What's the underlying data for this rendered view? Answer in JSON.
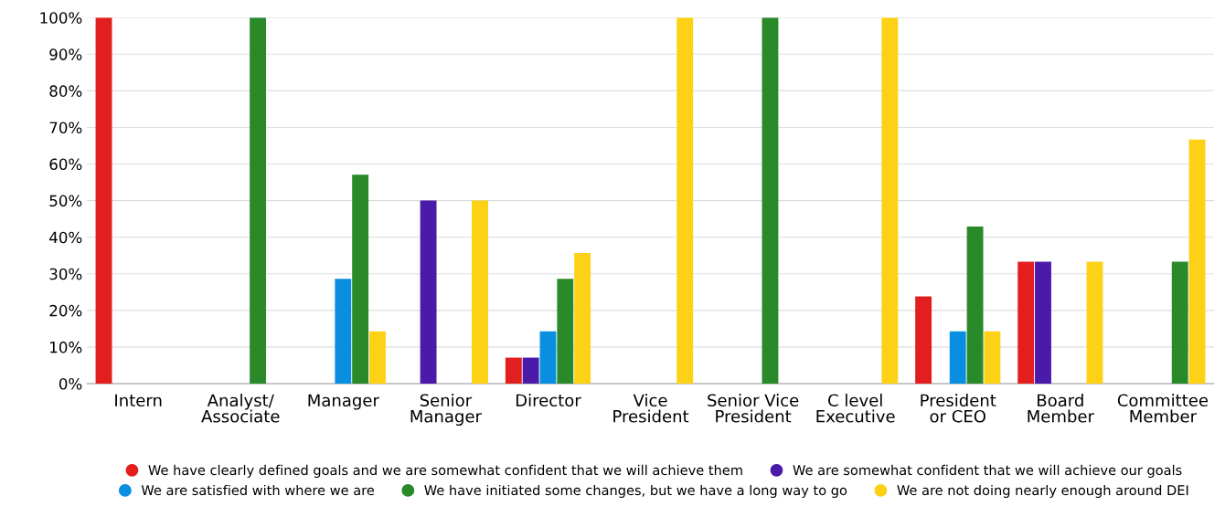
{
  "chart_data": {
    "type": "bar",
    "categories": [
      "Intern",
      "Analyst/\nAssociate",
      "Manager",
      "Senior\nManager",
      "Director",
      "Vice\nPresident",
      "Senior Vice\nPresident",
      "C level\nExecutive",
      "President\nor CEO",
      "Board\nMember",
      "Committee\nMember"
    ],
    "series": [
      {
        "name": "We have clearly defined goals and we are somewhat confident that we will achieve them",
        "color": "#e31e1e",
        "values": [
          100,
          0,
          0,
          0,
          7.1,
          0,
          0,
          0,
          23.8,
          33.3,
          0
        ]
      },
      {
        "name": "We are somewhat confident that we will achieve our goals",
        "color": "#4a1aa8",
        "values": [
          0,
          0,
          0,
          50,
          7.1,
          0,
          0,
          0,
          0,
          33.3,
          0
        ]
      },
      {
        "name": "We are satisfied with where we are",
        "color": "#0a8fe0",
        "values": [
          0,
          0,
          28.6,
          0,
          14.3,
          0,
          0,
          0,
          14.3,
          0,
          0
        ]
      },
      {
        "name": "We have initiated some changes, but we have a long way to go",
        "color": "#2a8a2a",
        "values": [
          0,
          100,
          57.1,
          0,
          28.6,
          0,
          100,
          0,
          42.9,
          0,
          33.3
        ]
      },
      {
        "name": "We are not doing nearly enough around DEI",
        "color": "#fcd116",
        "values": [
          0,
          0,
          14.3,
          50,
          35.7,
          100,
          0,
          100,
          14.3,
          33.3,
          66.7
        ]
      }
    ],
    "ylim": [
      0,
      100
    ],
    "yticks": [
      {
        "value": 0,
        "label": "0%"
      },
      {
        "value": 10,
        "label": "10%"
      },
      {
        "value": 20,
        "label": "20%"
      },
      {
        "value": 30,
        "label": "30%"
      },
      {
        "value": 40,
        "label": "40%"
      },
      {
        "value": 50,
        "label": "50%"
      },
      {
        "value": 60,
        "label": "60%"
      },
      {
        "value": 70,
        "label": "70%"
      },
      {
        "value": 80,
        "label": "80%"
      },
      {
        "value": 90,
        "label": "90%"
      },
      {
        "value": 100,
        "label": "100%"
      }
    ],
    "grid": "y",
    "legend": "bottom"
  }
}
